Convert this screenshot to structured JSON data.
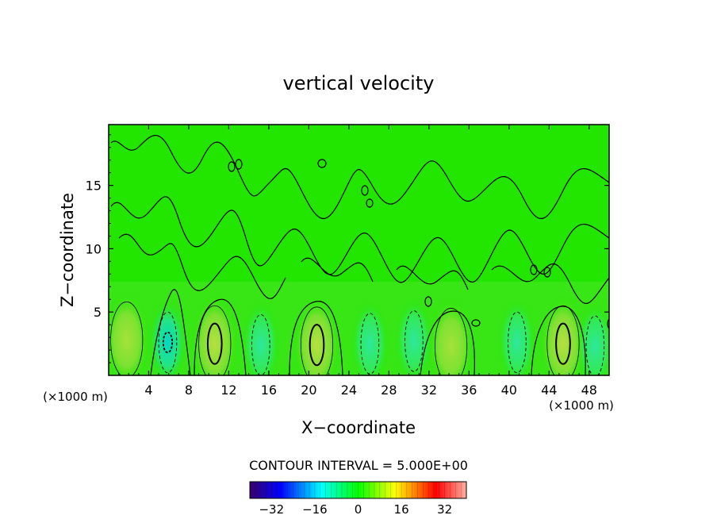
{
  "chart_data": {
    "type": "heatmap",
    "title": "vertical velocity",
    "xlabel": "X−coordinate",
    "ylabel": "Z−coordinate",
    "x_unit_label": "(×1000 m)",
    "y_unit_label": "(×1000 m)",
    "xlim": [
      0,
      50
    ],
    "ylim": [
      0,
      19.8
    ],
    "x_ticks": [
      4,
      8,
      12,
      16,
      20,
      24,
      28,
      32,
      36,
      40,
      44,
      48
    ],
    "x_tick_labels": [
      "4",
      "8",
      "12",
      "16",
      "20",
      "24",
      "28",
      "32",
      "36",
      "40",
      "44",
      "48"
    ],
    "y_ticks": [
      5,
      10,
      15
    ],
    "y_tick_labels": [
      "5",
      "10",
      "15"
    ],
    "contour_interval_label": "CONTOUR INTERVAL = 5.000E+00",
    "colorbar": {
      "range": [
        -40,
        40
      ],
      "ticks": [
        -32,
        -16,
        0,
        16,
        32
      ],
      "tick_labels": [
        "−32",
        "−16",
        "0",
        "16",
        "32"
      ],
      "colors": [
        "#3a006a",
        "#0000ff",
        "#00ffff",
        "#00ff00",
        "#ffff00",
        "#ff0000",
        "#ffb0a0"
      ]
    },
    "background_color": "#22e600",
    "updrafts": [
      {
        "x": 1.8,
        "z": 2.8,
        "peak": 12
      },
      {
        "x": 10.6,
        "z": 2.5,
        "peak": 18
      },
      {
        "x": 20.8,
        "z": 2.4,
        "peak": 18
      },
      {
        "x": 34.2,
        "z": 2.3,
        "peak": 11
      },
      {
        "x": 45.4,
        "z": 2.5,
        "peak": 17
      }
    ],
    "downdrafts": [
      {
        "x": 5.9,
        "z": 2.6,
        "peak": -14
      },
      {
        "x": 15.2,
        "z": 2.4,
        "peak": -6
      },
      {
        "x": 26.1,
        "z": 2.5,
        "peak": -8
      },
      {
        "x": 30.5,
        "z": 2.7,
        "peak": -5
      },
      {
        "x": 40.8,
        "z": 2.6,
        "peak": -6
      },
      {
        "x": 48.6,
        "z": 2.3,
        "peak": -7
      }
    ]
  }
}
